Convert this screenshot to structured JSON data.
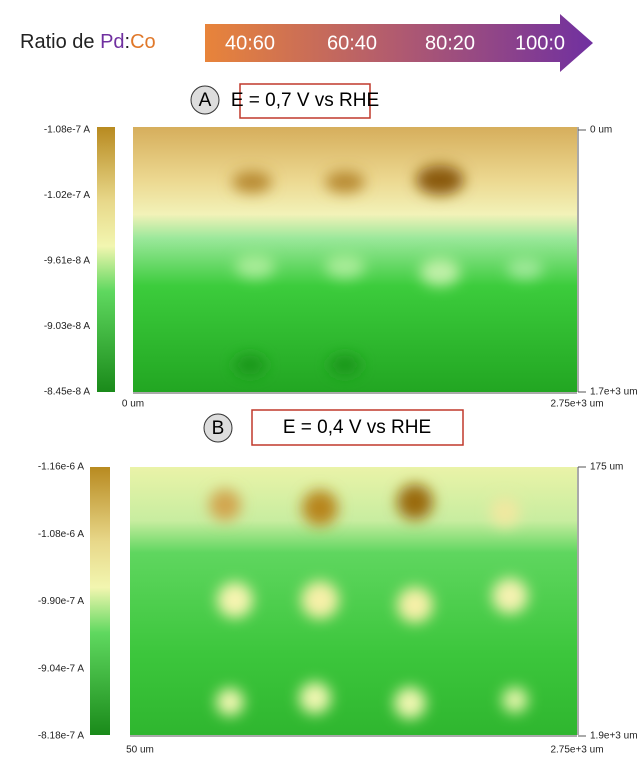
{
  "header": {
    "label": "Ratio de",
    "metal_1": "Pd",
    "separator": ":",
    "metal_2": "Co",
    "ratios": [
      "40:60",
      "60:40",
      "80:20",
      "100:0"
    ]
  },
  "panels": [
    {
      "letter": "A",
      "condition": "E = 0,7 V vs RHE",
      "colorbar_labels": [
        "-1.08e-7 A",
        "-1.02e-7 A",
        "-9.61e-8 A",
        "-9.03e-8 A",
        "-8.45e-8 A"
      ],
      "y_axis": [
        "0 um",
        "1.7e+3 um"
      ],
      "x_axis": [
        "0 um",
        "2.75e+3 um"
      ]
    },
    {
      "letter": "B",
      "condition": "E = 0,4 V vs RHE",
      "colorbar_labels": [
        "-1.16e-6 A",
        "-1.08e-6 A",
        "-9.90e-7 A",
        "-9.04e-7 A",
        "-8.18e-7 A"
      ],
      "y_axis": [
        "175 um",
        "1.9e+3 um"
      ],
      "x_axis": [
        "50 um",
        "2.75e+3 um"
      ]
    }
  ]
}
